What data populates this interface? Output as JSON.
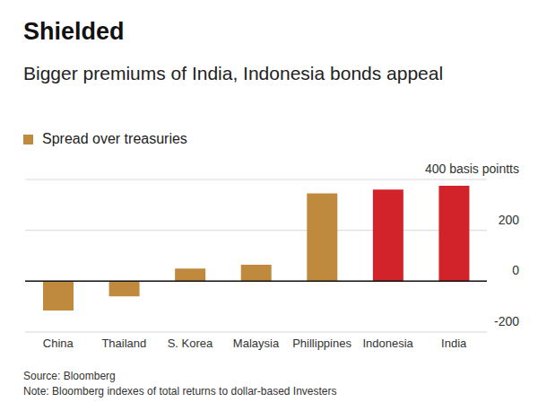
{
  "chart_data": {
    "type": "bar",
    "title": "Shielded",
    "subtitle": "Bigger premiums of India, Indonesia bonds appeal",
    "categories": [
      "China",
      "Thailand",
      "S. Korea",
      "Malaysia",
      "Phillippines",
      "Indonesia",
      "India"
    ],
    "series": [
      {
        "name": "Spread over treasuries",
        "color": "#c08a3e",
        "colors": [
          "#c08a3e",
          "#c08a3e",
          "#c08a3e",
          "#c08a3e",
          "#c08a3e",
          "#d2232a",
          "#d2232a"
        ],
        "values": [
          -115,
          -60,
          50,
          65,
          345,
          360,
          375
        ]
      }
    ],
    "ylim": [
      -200,
      400
    ],
    "yticks": [
      -200,
      0,
      200,
      {
        "value": 400,
        "label": "400 basis pointts"
      }
    ],
    "grid": true,
    "legend": "top-left",
    "annotations": [
      "Source: Bloomberg",
      "Note: Bloomberg indexes of total returns to dollar-based Investers"
    ]
  }
}
